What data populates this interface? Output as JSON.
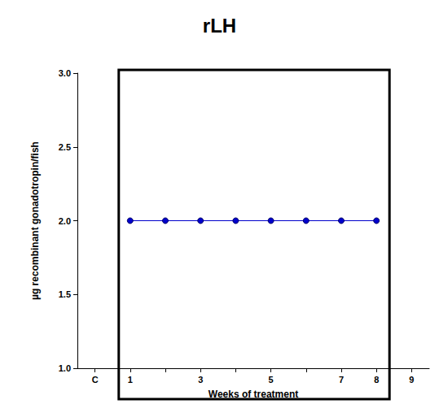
{
  "chart_data": {
    "type": "line",
    "title": "rLH",
    "x_label": "Weeks of treatment",
    "y_label": "µg recombinant gonadotropin/fish",
    "categories": [
      "C",
      "1",
      null,
      "3",
      null,
      "5",
      null,
      "7",
      "8",
      "9"
    ],
    "values": [
      null,
      2.0,
      2.0,
      2.0,
      2.0,
      2.0,
      2.0,
      2.0,
      2.0,
      null
    ],
    "color": "#0000cc",
    "marker": "circle",
    "ylim": [
      1,
      3
    ],
    "yticks": [
      {
        "value": 1,
        "label": "1.0"
      },
      {
        "value": 1.5,
        "label": "1.5"
      },
      {
        "value": 2,
        "label": "2.0"
      },
      {
        "value": 2.5,
        "label": "2.5"
      },
      {
        "value": 3,
        "label": "3.0"
      }
    ],
    "grid": false
  }
}
